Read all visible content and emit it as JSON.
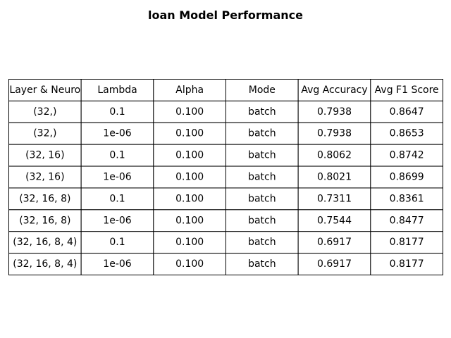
{
  "chart_data": {
    "type": "table",
    "title": "loan Model Performance",
    "columns": [
      "Layer & Neuro",
      "Lambda",
      "Alpha",
      "Mode",
      "Avg Accuracy",
      "Avg F1 Score"
    ],
    "rows": [
      [
        "(32,)",
        "0.1",
        "0.100",
        "batch",
        "0.7938",
        "0.8647"
      ],
      [
        "(32,)",
        "1e-06",
        "0.100",
        "batch",
        "0.7938",
        "0.8653"
      ],
      [
        "(32, 16)",
        "0.1",
        "0.100",
        "batch",
        "0.8062",
        "0.8742"
      ],
      [
        "(32, 16)",
        "1e-06",
        "0.100",
        "batch",
        "0.8021",
        "0.8699"
      ],
      [
        "(32, 16, 8)",
        "0.1",
        "0.100",
        "batch",
        "0.7311",
        "0.8361"
      ],
      [
        "(32, 16, 8)",
        "1e-06",
        "0.100",
        "batch",
        "0.7544",
        "0.8477"
      ],
      [
        "(32, 16, 8, 4)",
        "0.1",
        "0.100",
        "batch",
        "0.6917",
        "0.8177"
      ],
      [
        "(32, 16, 8, 4)",
        "1e-06",
        "0.100",
        "batch",
        "0.6917",
        "0.8177"
      ]
    ]
  }
}
